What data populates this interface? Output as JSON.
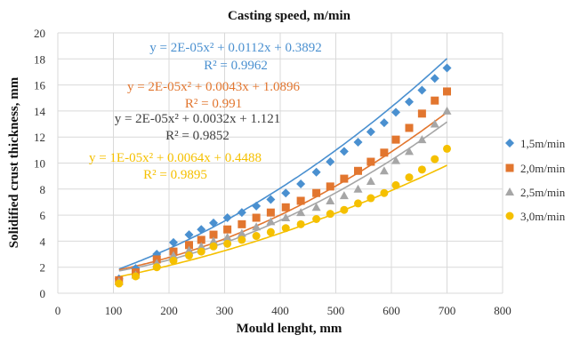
{
  "chart_data": {
    "type": "scatter",
    "title": "Casting speed, m/min",
    "xlabel": "Mould lenght, mm",
    "ylabel": "Solidified crust thickness, mm",
    "xlim": [
      0,
      800
    ],
    "ylim": [
      0,
      20
    ],
    "x_ticks": [
      "0",
      "100",
      "200",
      "300",
      "400",
      "500",
      "600",
      "700",
      "800"
    ],
    "y_ticks": [
      "0",
      "2",
      "4",
      "6",
      "8",
      "10",
      "12",
      "14",
      "16",
      "18",
      "20"
    ],
    "grid": "both",
    "legend_position": "right",
    "series": [
      {
        "name": "1,5m/min",
        "color": "#4a90d0",
        "marker": "diamond",
        "x": [
          110,
          140,
          178,
          208,
          236,
          258,
          280,
          305,
          331,
          357,
          383,
          410,
          437,
          465,
          490,
          515,
          540,
          563,
          587,
          608,
          632,
          655,
          678,
          700
        ],
        "y": [
          1.1,
          1.9,
          3.0,
          3.9,
          4.5,
          4.9,
          5.4,
          5.8,
          6.2,
          6.7,
          7.2,
          7.7,
          8.4,
          9.3,
          10.1,
          10.9,
          11.6,
          12.4,
          13.1,
          13.9,
          14.7,
          15.6,
          16.5,
          17.3
        ],
        "trendline": {
          "type": "polynomial",
          "order": 2,
          "coefficients": [
            2e-05,
            0.0112,
            0.3892
          ],
          "x_range": [
            110,
            700
          ]
        },
        "equation": "y = 2E-05x² + 0.0112x + 0.3892",
        "r2_label": "R² = 0.9962"
      },
      {
        "name": "2,0m/min",
        "color": "#e2762f",
        "marker": "square",
        "x": [
          110,
          140,
          178,
          208,
          236,
          258,
          280,
          305,
          331,
          357,
          383,
          410,
          437,
          465,
          490,
          515,
          540,
          563,
          587,
          608,
          632,
          655,
          678,
          700
        ],
        "y": [
          1.0,
          1.6,
          2.6,
          3.2,
          3.7,
          4.1,
          4.5,
          4.9,
          5.3,
          5.8,
          6.2,
          6.6,
          7.1,
          7.7,
          8.2,
          8.8,
          9.4,
          10.1,
          10.8,
          11.8,
          12.7,
          13.8,
          14.8,
          15.5
        ],
        "trendline": {
          "type": "polynomial",
          "order": 2,
          "coefficients": [
            2e-05,
            0.0043,
            1.0896
          ],
          "x_range": [
            110,
            700
          ]
        },
        "equation": "y = 2E-05x² + 0.0043x + 1.0896",
        "r2_label": "R² = 0.991"
      },
      {
        "name": "2,5m/min",
        "color": "#a6a6a6",
        "marker": "triangle",
        "x": [
          110,
          140,
          178,
          208,
          236,
          258,
          280,
          305,
          331,
          357,
          383,
          410,
          437,
          465,
          490,
          515,
          540,
          563,
          587,
          608,
          632,
          655,
          678,
          700
        ],
        "y": [
          0.9,
          1.4,
          2.3,
          2.9,
          3.3,
          3.6,
          4.0,
          4.3,
          4.6,
          5.1,
          5.5,
          5.8,
          6.2,
          6.6,
          7.1,
          7.5,
          8.0,
          8.6,
          9.4,
          10.2,
          10.9,
          11.8,
          13.0,
          14.0
        ],
        "trendline": {
          "type": "polynomial",
          "order": 2,
          "coefficients": [
            2e-05,
            0.0032,
            1.121
          ],
          "x_range": [
            110,
            700
          ]
        },
        "equation": "y = 2E-05x² + 0.0032x + 1.121",
        "r2_label": "R² = 0.9852"
      },
      {
        "name": "3,0m/min",
        "color": "#f5c000",
        "marker": "circle",
        "x": [
          110,
          140,
          178,
          208,
          236,
          258,
          280,
          305,
          331,
          357,
          383,
          410,
          437,
          465,
          490,
          515,
          540,
          563,
          587,
          608,
          632,
          655,
          678,
          700
        ],
        "y": [
          0.75,
          1.3,
          2.0,
          2.5,
          2.9,
          3.2,
          3.6,
          3.8,
          4.1,
          4.4,
          4.7,
          5.0,
          5.3,
          5.7,
          6.1,
          6.4,
          6.9,
          7.3,
          7.7,
          8.3,
          8.9,
          9.5,
          10.3,
          11.1
        ],
        "trendline": {
          "type": "polynomial",
          "order": 2,
          "coefficients": [
            1e-05,
            0.0064,
            0.4488
          ],
          "x_range": [
            110,
            700
          ]
        },
        "equation": "y = 1E-05x² + 0.0064x + 0.4488",
        "r2_label": "R² = 0.9895"
      }
    ]
  }
}
